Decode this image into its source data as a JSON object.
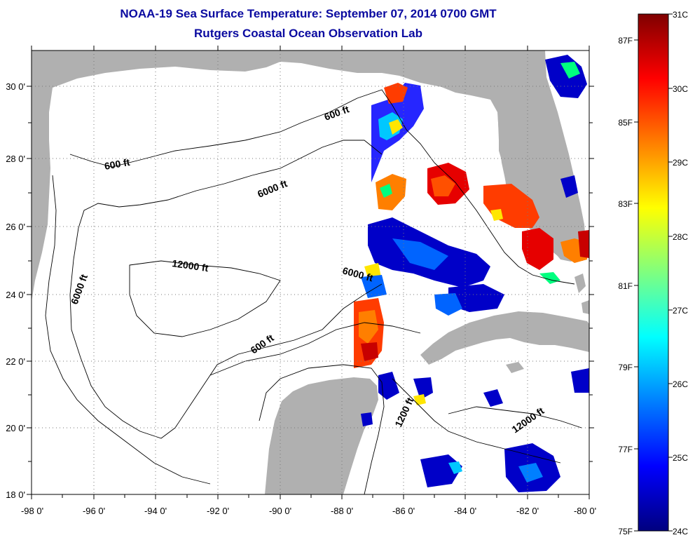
{
  "header": {
    "title_line1": "NOAA-19 Sea Surface Temperature:  September 07, 2014 0700 GMT",
    "title_line2": "Rutgers Coastal Ocean Observation Lab"
  },
  "map": {
    "lat_labels": [
      "30 0'",
      "28 0'",
      "26 0'",
      "24 0'",
      "22 0'",
      "20 0'",
      "18 0'"
    ],
    "lon_labels": [
      "-98 0'",
      "-96 0'",
      "-94 0'",
      "-92 0'",
      "-90 0'",
      "-88 0'",
      "-86 0'",
      "-84 0'",
      "-82 0'",
      "-80 0'"
    ],
    "contour_labels": {
      "c600_north": "600 ft",
      "c600_west": "600 ft",
      "c600_south": "600 ft",
      "c1200_a": "1200 ft",
      "c6000_north": "6000 ft",
      "c6000_west": "6000 ft",
      "c6000_east": "6000 ft",
      "c12000_central": "12000 ft",
      "c12000_carib": "12000 ft"
    }
  },
  "colorbar": {
    "celsius": [
      "31C",
      "30C",
      "29C",
      "28C",
      "27C",
      "26C",
      "25C",
      "24C"
    ],
    "fahrenheit": [
      "87F",
      "85F",
      "83F",
      "81F",
      "79F",
      "77F",
      "75F"
    ],
    "colors": [
      "#00007f",
      "#0000ff",
      "#007fff",
      "#00ffff",
      "#7fff7f",
      "#ffff00",
      "#ff7f00",
      "#ff0000",
      "#7f0000"
    ]
  },
  "colors": {
    "land": "#b0b0b0",
    "title": "#0a0aa0"
  }
}
